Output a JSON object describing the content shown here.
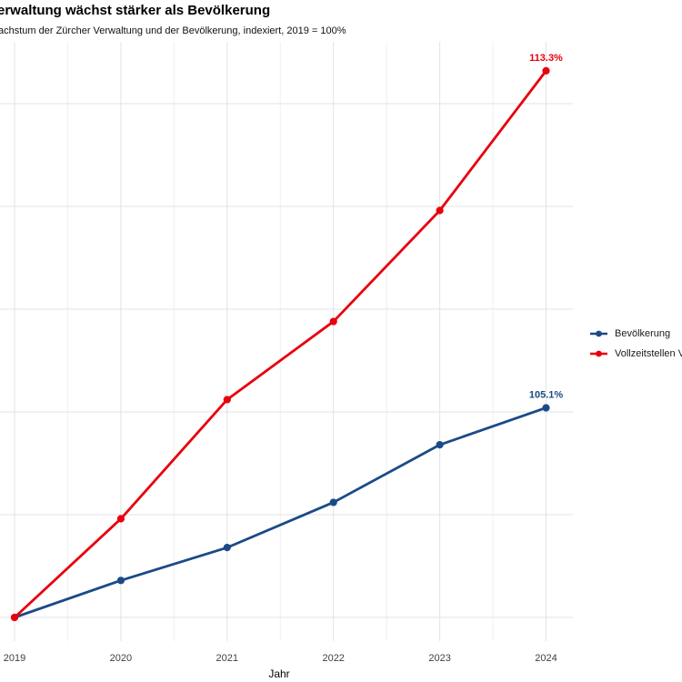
{
  "header": {
    "title": "erwaltung wächst stärker als Bevölkerung",
    "subtitle": "achstum der Zürcher Verwaltung und der Bevölkerung, indexiert, 2019 = 100%"
  },
  "colors": {
    "blue": "#1b4a87",
    "red": "#e8000d",
    "grid_major": "#e3e3e3",
    "grid_minor": "#efefef",
    "tick_text": "#404040"
  },
  "chart_data": {
    "type": "line",
    "x": [
      2019,
      2020,
      2021,
      2022,
      2023,
      2024
    ],
    "x_ticks": [
      "2019",
      "2020",
      "2021",
      "2022",
      "2023",
      "2024"
    ],
    "series": [
      {
        "name": "Bevölkerung",
        "color": "#1b4a87",
        "values": [
          100,
          100.9,
          101.7,
          102.8,
          104.2,
          105.1
        ],
        "end_label": "105.1%"
      },
      {
        "name": "Vollzeitstellen V",
        "color": "#e8000d",
        "values": [
          100,
          102.4,
          105.3,
          107.2,
          109.9,
          113.3
        ],
        "end_label": "113.3%"
      }
    ],
    "xlabel": "Jahr",
    "ylabel": "",
    "ylim_shown": [
      100,
      112.5
    ],
    "y_gridlines_pct": [
      100,
      102.5,
      105,
      107.5,
      110,
      112.5
    ],
    "x_minor_gridlines": [
      2019.5,
      2020.5,
      2021.5,
      2022.5,
      2023.5
    ],
    "grid": true,
    "legend_position": "right",
    "index_note": "2019 = 100%"
  }
}
